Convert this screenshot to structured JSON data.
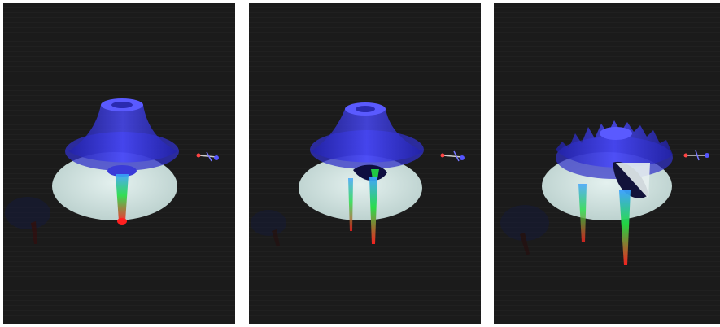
{
  "figure": {
    "panel_count": 3,
    "background_color": "#1b1b1b",
    "surface_color": "#2b2bd9",
    "disk_color": "#d7e8e6",
    "peak_colors": [
      "#ff2020",
      "#22dd44",
      "#3aa0ff"
    ],
    "panels": [
      {
        "id": "panel-1",
        "surface": "smooth-funnel",
        "peaks": 1
      },
      {
        "id": "panel-2",
        "surface": "funnel-with-dip",
        "peaks": 2
      },
      {
        "id": "panel-3",
        "surface": "rippled-funnel",
        "peaks": 2
      }
    ]
  }
}
